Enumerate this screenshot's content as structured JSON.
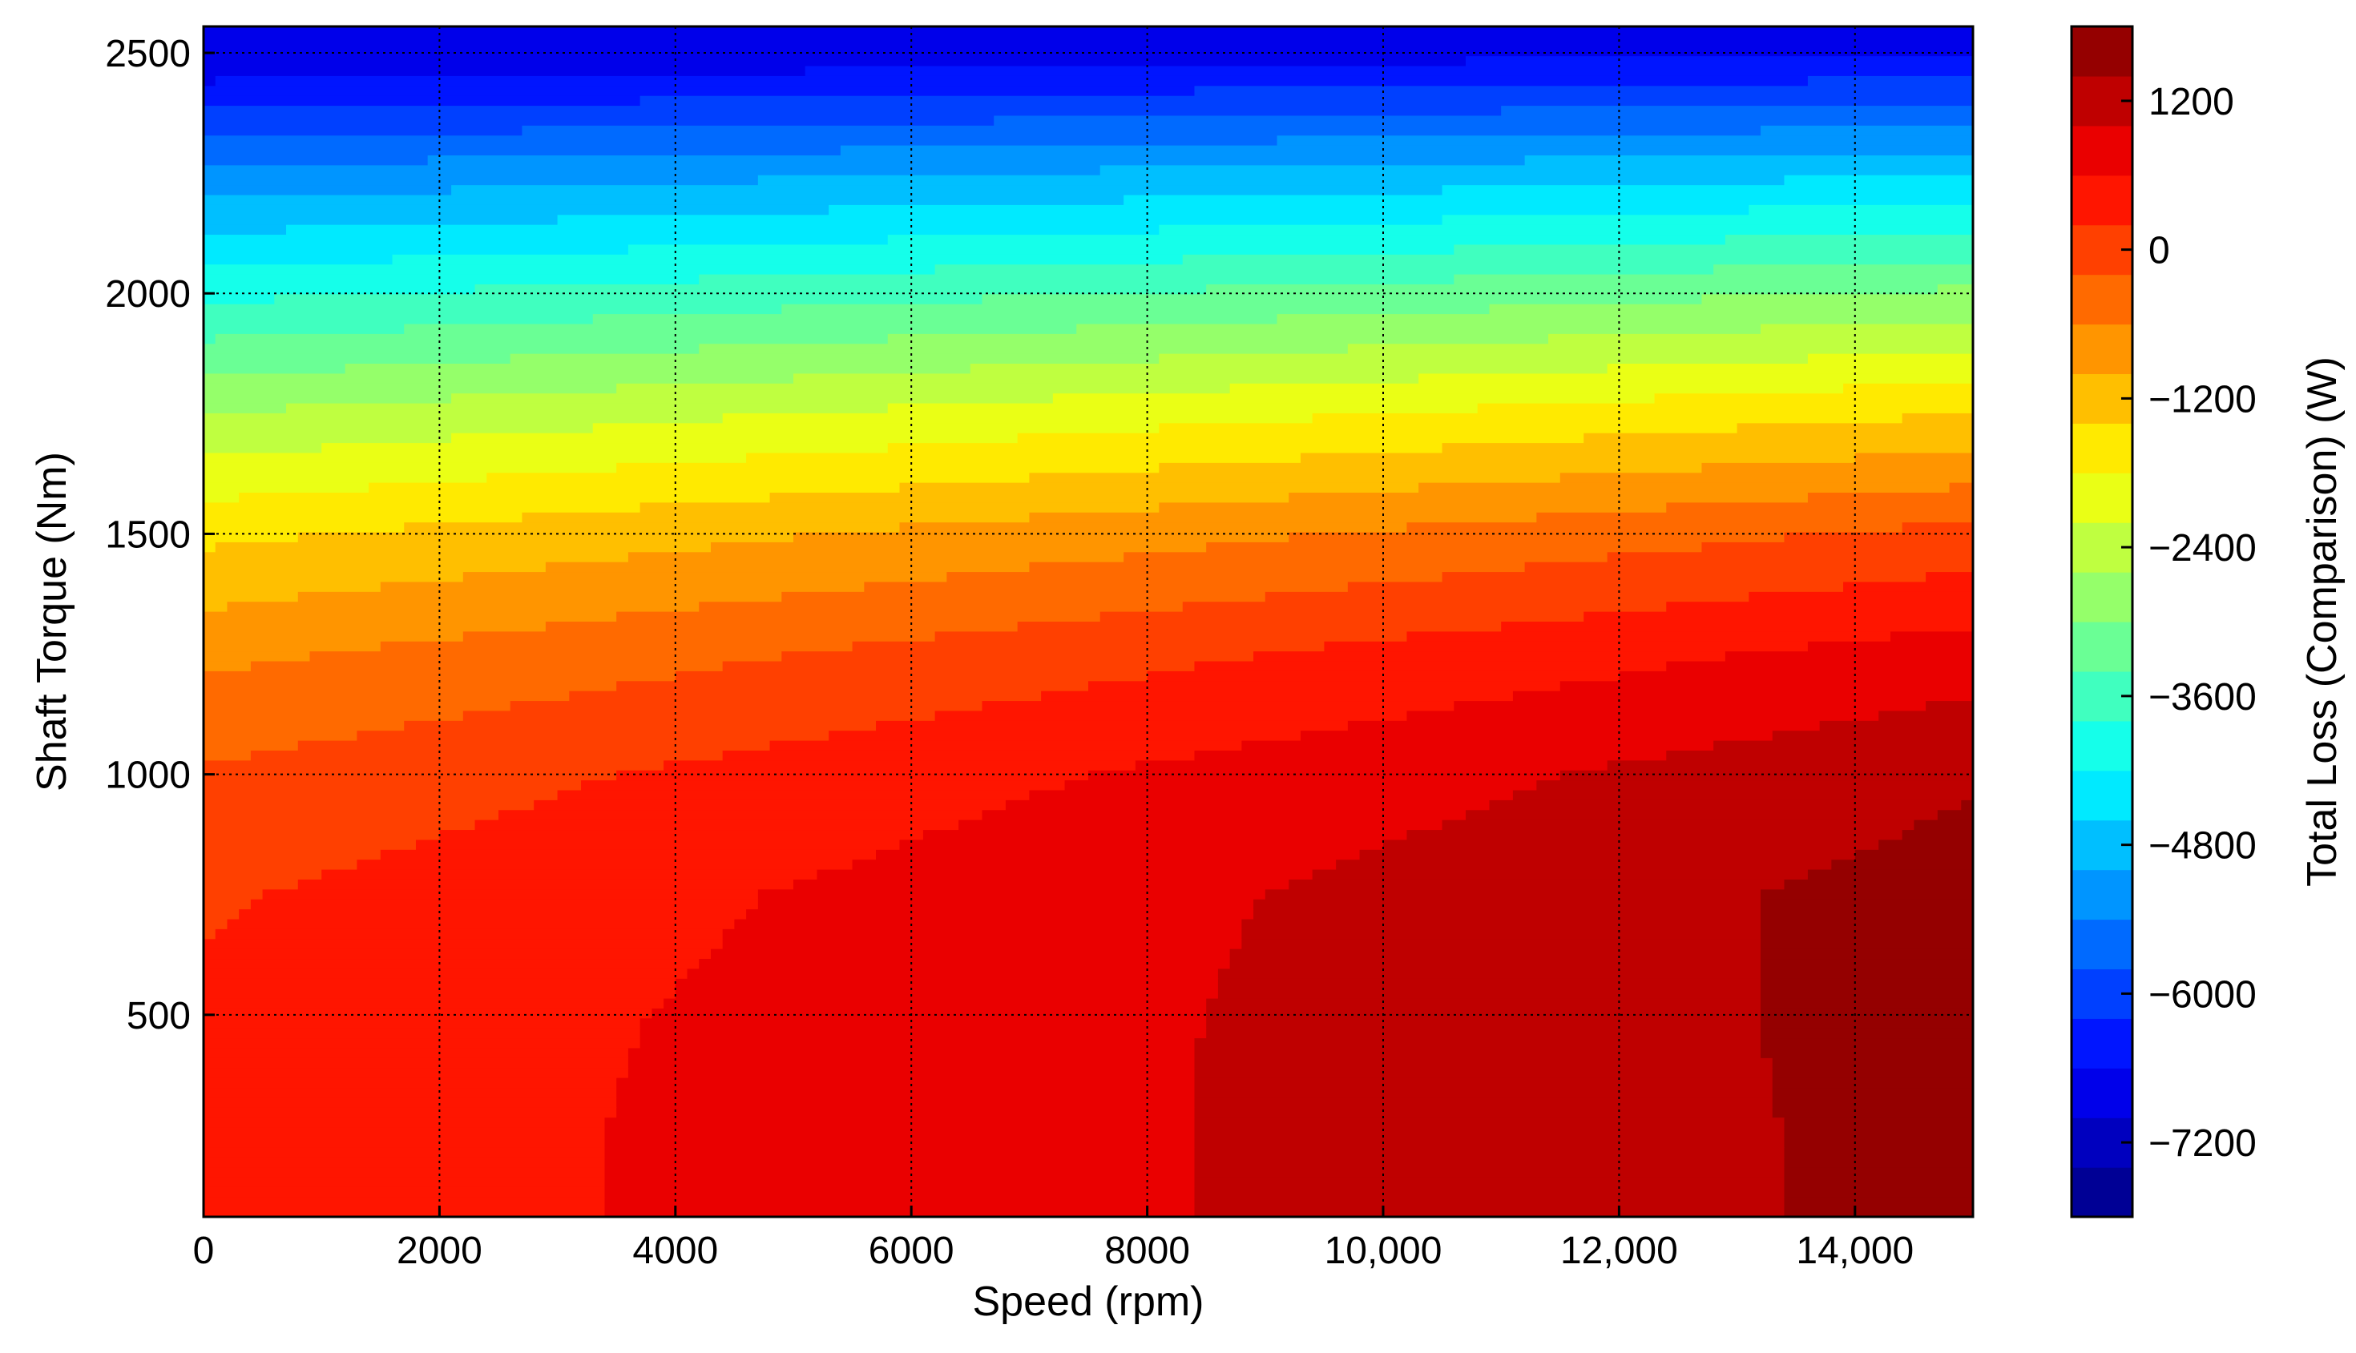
{
  "chart_data": {
    "type": "heatmap",
    "subtype": "filled-contour",
    "title": "",
    "xlabel": "Speed  (rpm)",
    "ylabel": "Shaft Torque  (Nm)",
    "colorbar_label": "Total Loss (Comparison) (W)",
    "colormap": "jet",
    "grid": true,
    "grid_style": "dotted",
    "xlim": [
      0,
      15000
    ],
    "ylim": [
      80,
      2555
    ],
    "clim": [
      -7800,
      1800
    ],
    "contour_levels": 24,
    "x_ticks": [
      {
        "value": 0,
        "label": "0"
      },
      {
        "value": 2000,
        "label": "2000"
      },
      {
        "value": 4000,
        "label": "4000"
      },
      {
        "value": 6000,
        "label": "6000"
      },
      {
        "value": 8000,
        "label": "8000"
      },
      {
        "value": 10000,
        "label": "10,000"
      },
      {
        "value": 12000,
        "label": "12,000"
      },
      {
        "value": 14000,
        "label": "14,000"
      }
    ],
    "y_ticks": [
      {
        "value": 500,
        "label": "500"
      },
      {
        "value": 1000,
        "label": "1000"
      },
      {
        "value": 1500,
        "label": "1500"
      },
      {
        "value": 2000,
        "label": "2000"
      },
      {
        "value": 2500,
        "label": "2500"
      }
    ],
    "colorbar_ticks": [
      {
        "value": 1200,
        "label": "1200"
      },
      {
        "value": 0,
        "label": "0"
      },
      {
        "value": -1200,
        "label": "−1200"
      },
      {
        "value": -2400,
        "label": "−2400"
      },
      {
        "value": -3600,
        "label": "−3600"
      },
      {
        "value": -4800,
        "label": "−4800"
      },
      {
        "value": -6000,
        "label": "−6000"
      },
      {
        "value": -7200,
        "label": "−7200"
      }
    ],
    "x": [
      0,
      1000,
      2000,
      3000,
      4000,
      5000,
      6000,
      7000,
      8000,
      9000,
      10000,
      11000,
      12000,
      13000,
      14000,
      15000
    ],
    "y": [
      2500,
      2250,
      2000,
      1750,
      1500,
      1250,
      1000,
      750,
      500,
      250
    ],
    "z": [
      [
        -7000,
        -6975,
        -6950,
        -6925,
        -6900,
        -6875,
        -6850,
        -6825,
        -6800,
        -6775,
        -6750,
        -6725,
        -6700,
        -6675,
        -6650,
        -6625
      ],
      [
        -5300,
        -5255,
        -5210,
        -5165,
        -5120,
        -5075,
        -5030,
        -4985,
        -4940,
        -4895,
        -4850,
        -4805,
        -4760,
        -4715,
        -4670,
        -4625
      ],
      [
        -3900,
        -3835,
        -3770,
        -3705,
        -3640,
        -3575,
        -3510,
        -3445,
        -3380,
        -3315,
        -3250,
        -3185,
        -3120,
        -3055,
        -2990,
        -2925
      ],
      [
        -2600,
        -2520,
        -2440,
        -2360,
        -2280,
        -2200,
        -2120,
        -2040,
        -1960,
        -1880,
        -1800,
        -1720,
        -1640,
        -1560,
        -1480,
        -1400
      ],
      [
        -1500,
        -1405,
        -1310,
        -1215,
        -1120,
        -1025,
        -930,
        -835,
        -740,
        -645,
        -550,
        -455,
        -360,
        -265,
        -170,
        -75
      ],
      [
        -700,
        -600,
        -500,
        -400,
        -300,
        -200,
        -100,
        0,
        100,
        200,
        300,
        400,
        500,
        600,
        700,
        800
      ],
      [
        -150,
        -50,
        50,
        150,
        250,
        350,
        450,
        550,
        650,
        750,
        850,
        950,
        1050,
        1150,
        1250,
        1350
      ],
      [
        150,
        245,
        340,
        435,
        530,
        625,
        720,
        815,
        910,
        1005,
        1100,
        1195,
        1290,
        1385,
        1480,
        1575
      ],
      [
        280,
        365,
        450,
        535,
        620,
        705,
        790,
        875,
        960,
        1045,
        1130,
        1215,
        1300,
        1385,
        1470,
        1555
      ],
      [
        330,
        410,
        490,
        570,
        650,
        730,
        810,
        890,
        970,
        1050,
        1130,
        1210,
        1290,
        1370,
        1450,
        1530
      ]
    ]
  }
}
